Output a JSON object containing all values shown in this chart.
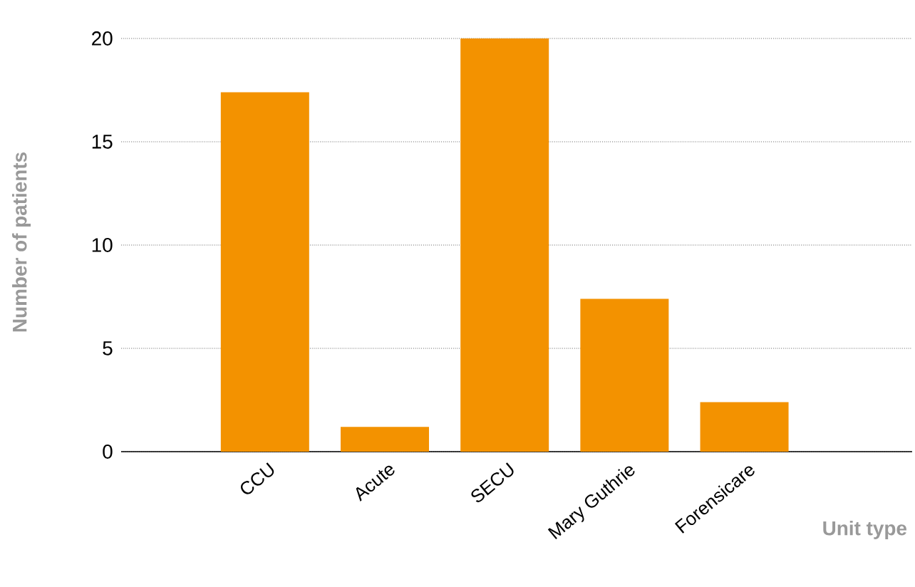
{
  "chart_data": {
    "type": "bar",
    "categories": [
      "CCU",
      "Acute",
      "SECU",
      "Mary Guthrie",
      "Forensicare"
    ],
    "values": [
      17.4,
      1.2,
      20,
      7.4,
      2.4
    ],
    "color": "#f39200",
    "xlabel": "Unit type",
    "ylabel": "Number of patients",
    "ylim": [
      0,
      20
    ],
    "yticks": [
      0,
      5,
      10,
      15,
      20
    ],
    "grid": "y"
  }
}
